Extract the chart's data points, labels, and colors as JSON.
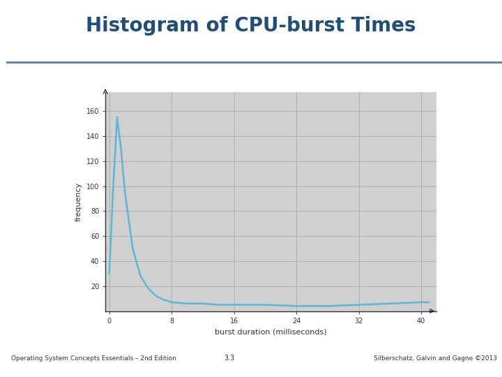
{
  "title": "Histogram of CPU-burst Times",
  "xlabel": "burst duration (milliseconds)",
  "ylabel": "frequency",
  "x_data": [
    0,
    0.5,
    1,
    1.5,
    2,
    3,
    4,
    5,
    6,
    7,
    8,
    10,
    12,
    14,
    16,
    18,
    20,
    24,
    28,
    32,
    36,
    40,
    41
  ],
  "y_data": [
    30,
    100,
    155,
    130,
    95,
    50,
    28,
    18,
    12,
    9,
    7,
    6,
    6,
    5,
    5,
    5,
    5,
    4,
    4,
    5,
    6,
    7,
    7
  ],
  "line_color": "#5bb8d4",
  "line_width": 1.8,
  "plot_bg": "#d0d0d0",
  "frame_bg": "#ffffff",
  "title_color": "#1f4e79",
  "left_bar_color": "#5a7fa8",
  "header_line_color": "#5a7fa8",
  "footer_left": "Operating System Concepts Essentials – 2nd Edition",
  "footer_center": "3.3",
  "footer_right": "Silberschatz, Galvin and Gagne ©2013",
  "yticks": [
    20,
    40,
    60,
    80,
    100,
    120,
    140,
    160
  ],
  "xticks": [
    0,
    8,
    16,
    24,
    32,
    40
  ],
  "xlim": [
    -0.5,
    42
  ],
  "ylim": [
    0,
    175
  ],
  "grid_color": "#aaaaaa",
  "tick_label_size": 7,
  "axis_label_size": 8
}
